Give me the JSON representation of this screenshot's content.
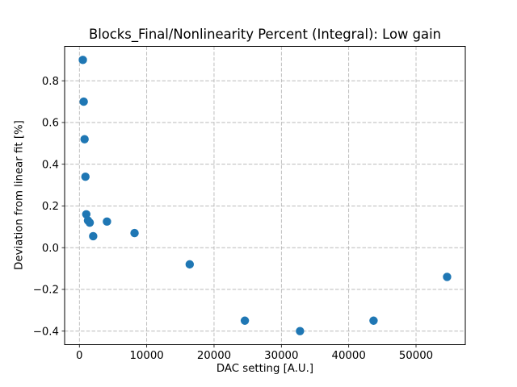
{
  "chart_data": {
    "type": "scatter",
    "title": "Blocks_Final/Nonlinearity Percent (Integral): Low gain",
    "xlabel": "DAC setting [A.U.]",
    "ylabel": "Deviation from linear fit [%]",
    "xlim": [
      -2193,
      57318
    ],
    "ylim": [
      -0.465,
      0.965
    ],
    "grid": true,
    "grid_color": "#b0b0b0",
    "grid_style": "dashed",
    "marker_color": "#1f77b4",
    "marker_shape": "circle",
    "legend": "none",
    "x_ticks": {
      "values": [
        0,
        10000,
        20000,
        30000,
        40000,
        50000
      ],
      "labels": [
        "0",
        "10000",
        "20000",
        "30000",
        "40000",
        "50000"
      ]
    },
    "y_ticks": {
      "values": [
        0.8,
        0.6,
        0.4,
        0.2,
        0.0,
        -0.2,
        -0.4
      ],
      "labels": [
        "0.8",
        "0.6",
        "0.4",
        "0.2",
        "0.0",
        "−0.2",
        "−0.4"
      ]
    },
    "points": [
      {
        "x": 512,
        "y": 0.9
      },
      {
        "x": 640,
        "y": 0.7
      },
      {
        "x": 768,
        "y": 0.52
      },
      {
        "x": 896,
        "y": 0.34
      },
      {
        "x": 1024,
        "y": 0.16
      },
      {
        "x": 1280,
        "y": 0.13
      },
      {
        "x": 1536,
        "y": 0.12
      },
      {
        "x": 2048,
        "y": 0.055
      },
      {
        "x": 4096,
        "y": 0.125
      },
      {
        "x": 8192,
        "y": 0.07
      },
      {
        "x": 16384,
        "y": -0.08
      },
      {
        "x": 24576,
        "y": -0.35
      },
      {
        "x": 32768,
        "y": -0.4
      },
      {
        "x": 43690,
        "y": -0.35
      },
      {
        "x": 54613,
        "y": -0.14
      }
    ]
  }
}
